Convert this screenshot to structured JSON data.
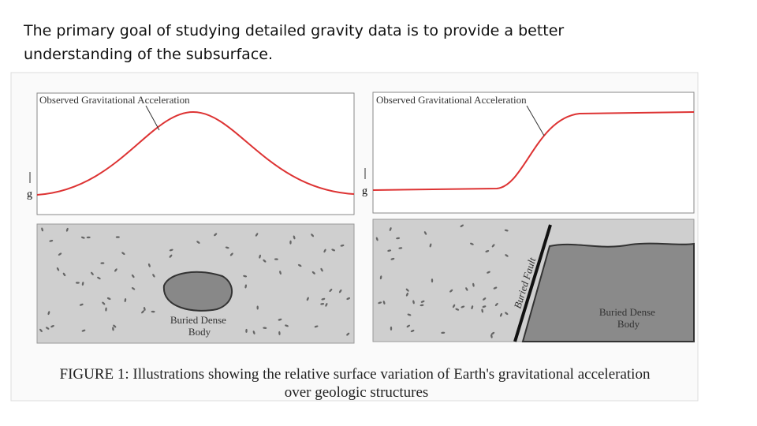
{
  "heading": "The primary goal of studying detailed gravity data is to provide a better understanding of the subsurface.",
  "figure": {
    "panels": [
      {
        "curve_label": "Observed Gravitational Acceleration",
        "axis_label": "g",
        "body_label": [
          "Buried Dense",
          "Body"
        ]
      },
      {
        "curve_label": "Observed Gravitational Acceleration",
        "axis_label": "g",
        "body_label": [
          "Buried Dense",
          "Body"
        ],
        "fault_label": "Buried Fault"
      }
    ],
    "caption": [
      "FIGURE 1: Illustrations showing the relative surface variation of Earth's gravitational acceleration",
      "over geologic structures"
    ]
  }
}
